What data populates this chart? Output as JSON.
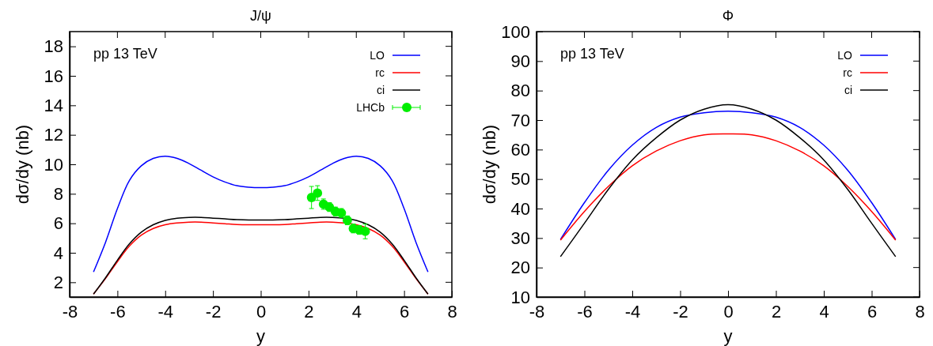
{
  "chart_data": [
    {
      "type": "line",
      "title": "J/ψ",
      "xlabel": "y",
      "ylabel": "dσ/dy (nb)",
      "annotations": [
        "pp 13 TeV"
      ],
      "legend": "top right",
      "xlim": [
        -8,
        8
      ],
      "xticks": [
        -8,
        -6,
        -4,
        -2,
        0,
        2,
        4,
        6,
        8
      ],
      "ylim": [
        1,
        19
      ],
      "yticks": [
        2,
        4,
        6,
        8,
        10,
        12,
        14,
        16,
        18
      ],
      "grid": false,
      "x": [
        -7,
        -6.5,
        -6,
        -5.5,
        -5,
        -4.5,
        -4,
        -3.5,
        -3,
        -2.5,
        -2,
        -1.5,
        -1,
        -0.5,
        0,
        0.5,
        1,
        1.5,
        2,
        2.5,
        3,
        3.5,
        4,
        4.5,
        5,
        5.5,
        6,
        6.5,
        7
      ],
      "series": [
        {
          "name": "LO",
          "color": "#0000ff",
          "values": [
            2.7,
            4.7,
            7.0,
            8.9,
            9.9,
            10.4,
            10.55,
            10.4,
            10.05,
            9.6,
            9.15,
            8.8,
            8.55,
            8.45,
            8.42,
            8.45,
            8.55,
            8.8,
            9.15,
            9.6,
            10.05,
            10.4,
            10.55,
            10.4,
            9.9,
            8.9,
            7.0,
            4.7,
            2.7
          ]
        },
        {
          "name": "rc",
          "color": "#ff0000",
          "values": [
            1.2,
            2.25,
            3.4,
            4.45,
            5.2,
            5.65,
            5.9,
            6.02,
            6.08,
            6.08,
            6.02,
            5.97,
            5.92,
            5.9,
            5.9,
            5.9,
            5.92,
            5.97,
            6.02,
            6.08,
            6.08,
            6.02,
            5.9,
            5.65,
            5.2,
            4.45,
            3.4,
            2.25,
            1.2
          ]
        },
        {
          "name": "ci",
          "color": "#000000",
          "values": [
            1.2,
            2.3,
            3.5,
            4.6,
            5.4,
            5.9,
            6.2,
            6.35,
            6.4,
            6.4,
            6.35,
            6.3,
            6.25,
            6.22,
            6.22,
            6.22,
            6.25,
            6.3,
            6.35,
            6.4,
            6.4,
            6.35,
            6.2,
            5.9,
            5.4,
            4.6,
            3.5,
            2.3,
            1.2
          ]
        },
        {
          "name": "LHCb",
          "type": "scatter",
          "marker": "circle",
          "color": "#00ee00",
          "x": [
            2.125,
            2.375,
            2.625,
            2.875,
            3.125,
            3.375,
            3.625,
            3.875,
            4.125,
            4.375
          ],
          "values": [
            7.75,
            8.05,
            7.3,
            7.1,
            6.8,
            6.7,
            6.2,
            5.65,
            5.55,
            5.45
          ],
          "errors": [
            0.75,
            0.5,
            0.35,
            0.3,
            0.3,
            0.3,
            0.3,
            0.3,
            0.3,
            0.5
          ]
        }
      ]
    },
    {
      "type": "line",
      "title": "Φ",
      "xlabel": "y",
      "ylabel": "dσ/dy (nb)",
      "annotations": [
        "pp 13 TeV"
      ],
      "legend": "top right",
      "xlim": [
        -8,
        8
      ],
      "xticks": [
        -8,
        -6,
        -4,
        -2,
        0,
        2,
        4,
        6,
        8
      ],
      "ylim": [
        10,
        100
      ],
      "yticks": [
        10,
        20,
        30,
        40,
        50,
        60,
        70,
        80,
        90,
        100
      ],
      "grid": false,
      "x": [
        -7,
        -6,
        -5,
        -4,
        -3,
        -2,
        -1,
        0,
        1,
        2,
        3,
        4,
        5,
        6,
        7
      ],
      "series": [
        {
          "name": "LO",
          "color": "#0000ff",
          "values": [
            29.5,
            42,
            53,
            61.5,
            67.5,
            71,
            72.5,
            73,
            72.5,
            71,
            67.5,
            61.5,
            53,
            42,
            29.5
          ]
        },
        {
          "name": "rc",
          "color": "#ff0000",
          "values": [
            29.3,
            39,
            47.5,
            54.5,
            59.5,
            63,
            65,
            65.3,
            65,
            63,
            59.5,
            54.5,
            47.5,
            39,
            29.3
          ]
        },
        {
          "name": "ci",
          "color": "#000000",
          "values": [
            23.7,
            35,
            46.5,
            56.5,
            64,
            70,
            73.7,
            75.2,
            73.7,
            70,
            64,
            56.5,
            46.5,
            35,
            23.7
          ]
        }
      ]
    }
  ]
}
